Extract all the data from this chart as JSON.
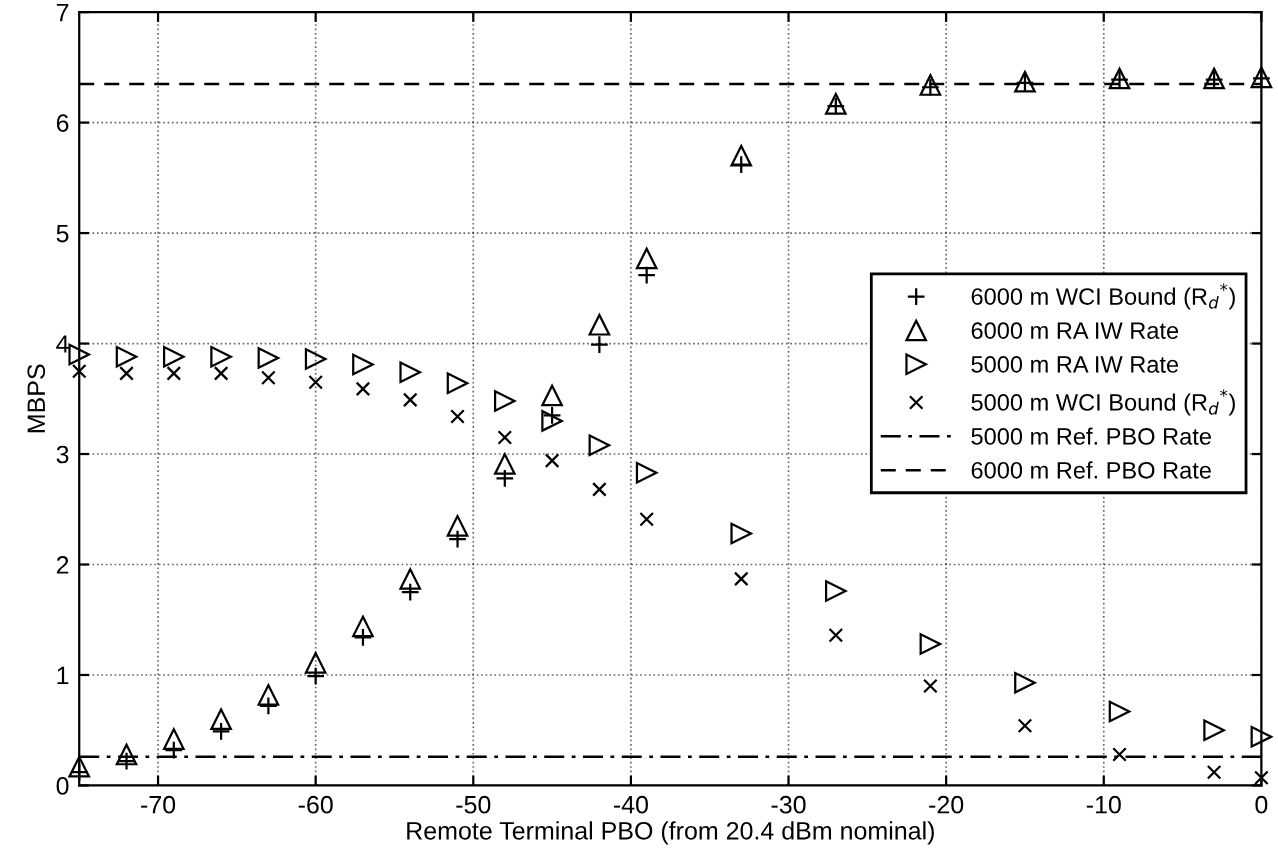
{
  "chart_data": {
    "type": "scatter",
    "xlabel": "Remote Terminal PBO (from 20.4 dBm nominal)",
    "ylabel": "MBPS",
    "x": [
      -75,
      -72,
      -69,
      -66,
      -63,
      -60,
      -57,
      -54,
      -51,
      -48,
      -45,
      -42,
      -39,
      -33,
      -27,
      -21,
      -15,
      -9,
      -3,
      0
    ],
    "series": [
      {
        "name": "6000 m WCI Bound (R$_{d}$$^{*}$)",
        "color": "#000000",
        "marker": "plus",
        "values": [
          0.12,
          0.22,
          0.32,
          0.49,
          0.72,
          0.99,
          1.34,
          1.75,
          2.23,
          2.78,
          3.35,
          3.99,
          4.62,
          5.62,
          6.15,
          6.32,
          6.36,
          6.39,
          6.39,
          6.4
        ]
      },
      {
        "name": "6000 m RA IW Rate",
        "color": "#000000",
        "marker": "triangle",
        "values": [
          0.17,
          0.28,
          0.42,
          0.6,
          0.82,
          1.11,
          1.44,
          1.87,
          2.35,
          2.91,
          3.53,
          4.17,
          4.77,
          5.7,
          6.17,
          6.34,
          6.37,
          6.4,
          6.4,
          6.41
        ]
      },
      {
        "name": "5000 m RA IW Rate",
        "color": "#000000",
        "marker": "triangle-right",
        "values": [
          3.9,
          3.88,
          3.88,
          3.88,
          3.87,
          3.86,
          3.81,
          3.74,
          3.64,
          3.48,
          3.3,
          3.08,
          2.83,
          2.28,
          1.76,
          1.28,
          0.93,
          0.67,
          0.5,
          0.44
        ]
      },
      {
        "name": "5000 m WCI Bound (R$_{d}$$^{*}$)",
        "color": "#000000",
        "marker": "cross",
        "values": [
          3.75,
          3.73,
          3.73,
          3.73,
          3.69,
          3.65,
          3.59,
          3.49,
          3.34,
          3.15,
          2.94,
          2.68,
          2.41,
          1.87,
          1.36,
          0.9,
          0.54,
          0.28,
          0.12,
          0.07
        ]
      }
    ],
    "ref_lines": [
      {
        "axis": "y",
        "value": 0.26,
        "label": "5000 m Ref. PBO Rate",
        "color": "#000000",
        "line_style": "dashdot"
      },
      {
        "axis": "y",
        "value": 6.35,
        "label": "6000 m Ref. PBO Rate",
        "color": "#000000",
        "line_style": "dashed"
      }
    ],
    "xlim": [
      -75,
      0
    ],
    "xticks": [
      -70,
      -60,
      -50,
      -40,
      -30,
      -20,
      -10,
      0
    ],
    "ylim": [
      0,
      7
    ],
    "yticks": [
      0,
      1,
      2,
      3,
      4,
      5,
      6,
      7
    ],
    "grid": true,
    "legend": "right"
  }
}
